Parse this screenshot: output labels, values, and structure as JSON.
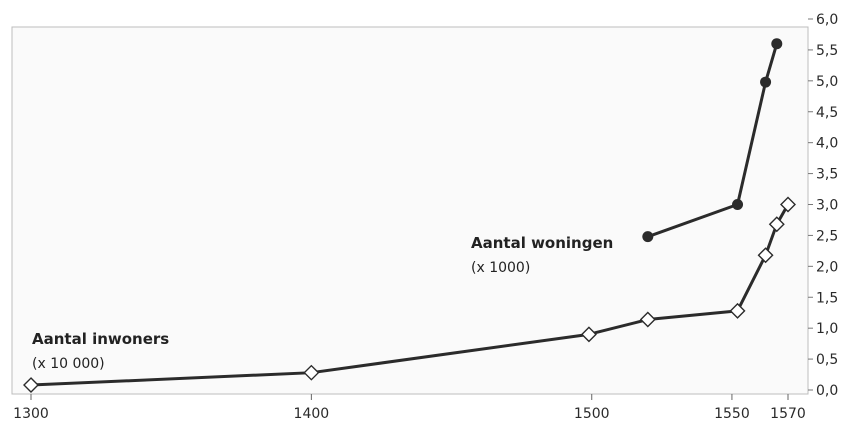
{
  "chart_data": {
    "type": "line",
    "title": "",
    "xlabel": "",
    "ylabel": "",
    "xlim": [
      1300,
      1570
    ],
    "ylim": [
      0,
      6
    ],
    "x_ticks": [
      1300,
      1400,
      1500,
      1550,
      1570
    ],
    "y_ticks": [
      "0,0",
      "0,5",
      "1,0",
      "1,5",
      "2,0",
      "2,5",
      "3,0",
      "3,5",
      "4,0",
      "4,5",
      "5,0",
      "5,5",
      "6,0"
    ],
    "y_axis_side": "right",
    "grid": false,
    "series": [
      {
        "name": "Aantal woningen",
        "unit": "(x 1000)",
        "marker": "filled-circle",
        "color": "#2b2b2b",
        "x": [
          1520,
          1552,
          1562,
          1566
        ],
        "y": [
          2.48,
          3.0,
          4.98,
          5.6
        ]
      },
      {
        "name": "Aantal inwoners",
        "unit": "(x 10 000)",
        "marker": "open-diamond",
        "color": "#2b2b2b",
        "x": [
          1300,
          1400,
          1499,
          1520,
          1552,
          1562,
          1566,
          1570
        ],
        "y": [
          0.08,
          0.28,
          0.9,
          1.14,
          1.28,
          2.18,
          2.68,
          3.0
        ]
      }
    ]
  }
}
